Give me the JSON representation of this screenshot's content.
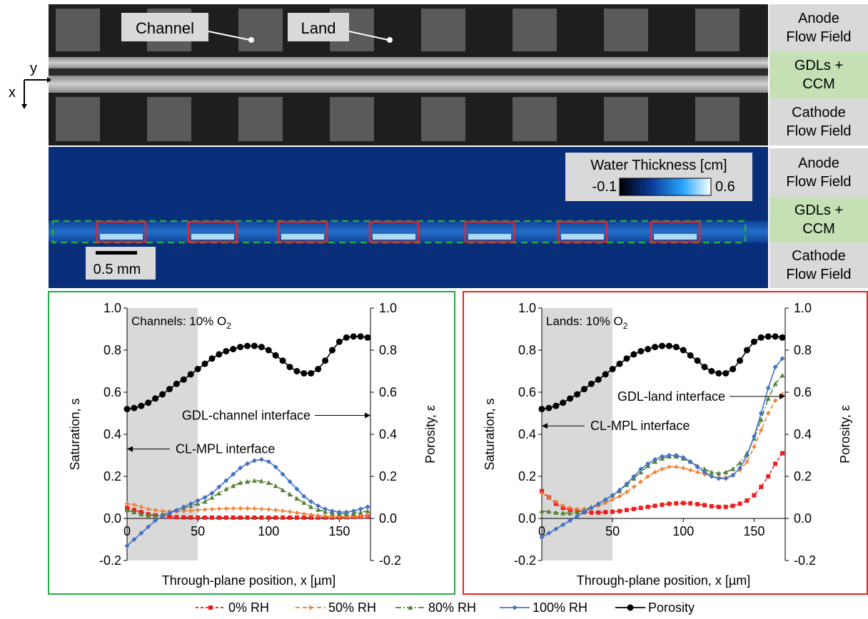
{
  "top_image": {
    "callouts": [
      {
        "label": "Channel"
      },
      {
        "label": "Land"
      }
    ],
    "axes": {
      "x": "x",
      "y": "y"
    },
    "side_labels": [
      {
        "text": "Anode\nFlow Field",
        "color": "#d9d9d9"
      },
      {
        "text": "GDLs +\nCCM",
        "color": "#c5e0b4"
      },
      {
        "text": "Cathode\nFlow Field",
        "color": "#d9d9d9"
      }
    ]
  },
  "water_image": {
    "colorbar_title": "Water Thickness [cm]",
    "colorbar_min": "-0.1",
    "colorbar_max": "0.6",
    "scale_bar": "0.5 mm",
    "side_labels": [
      {
        "text": "Anode\nFlow Field",
        "color": "#d9d9d9"
      },
      {
        "text": "GDLs +\nCCM",
        "color": "#c5e0b4"
      },
      {
        "text": "Cathode\nFlow Field",
        "color": "#d9d9d9"
      }
    ],
    "channel_box_color": "#22aa44",
    "land_box_color": "#ee2222"
  },
  "legend": {
    "entries": [
      {
        "label": "0% RH",
        "color": "#ee1c1c",
        "marker": "square",
        "dash": "4,3"
      },
      {
        "label": "50% RH",
        "color": "#ed7d31",
        "marker": "plus",
        "dash": "6,4"
      },
      {
        "label": "80% RH",
        "color": "#548235",
        "marker": "triangle",
        "dash": "8,3,2,3"
      },
      {
        "label": "100% RH",
        "color": "#4472c4",
        "marker": "diamond",
        "dash": ""
      },
      {
        "label": "Porosity",
        "color": "#000000",
        "marker": "circle",
        "dash": ""
      }
    ]
  },
  "chart_data": [
    {
      "type": "line",
      "panel": "channels",
      "frame_color": "#22aa44",
      "title": "Channels: 10% O",
      "title_sub": "2",
      "xlabel": "Through-plane position, x [µm]",
      "ylabel": "Saturation, s",
      "y2label": "Porosity, ε",
      "xlim": [
        0,
        172
      ],
      "ylim": [
        -0.2,
        1.0
      ],
      "y2lim": [
        -0.2,
        1.0
      ],
      "xticks": [
        "0",
        "50",
        "100",
        "150"
      ],
      "yticks": [
        "-0.2",
        "0.0",
        "0.2",
        "0.4",
        "0.6",
        "0.8",
        "1.0"
      ],
      "y2ticks": [
        "-0.2",
        "0.0",
        "0.2",
        "0.4",
        "0.6",
        "0.8",
        "1.0"
      ],
      "shade_xrange": [
        0,
        50
      ],
      "annotations": [
        {
          "text": "GDL-channel interface",
          "arrow": "right",
          "x": 172,
          "y": 0.49
        },
        {
          "text": "CL-MPL interface",
          "arrow": "left",
          "x": 0,
          "y": 0.33
        }
      ],
      "x": [
        0,
        5,
        10,
        15,
        20,
        25,
        30,
        35,
        40,
        45,
        50,
        55,
        60,
        65,
        70,
        75,
        80,
        85,
        90,
        95,
        100,
        105,
        110,
        115,
        120,
        125,
        130,
        135,
        140,
        145,
        150,
        155,
        160,
        165,
        170
      ],
      "series": [
        {
          "name": "0% RH",
          "values": [
            0.05,
            0.04,
            0.03,
            0.02,
            0.015,
            0.01,
            0.008,
            0.006,
            0.005,
            0.004,
            0.004,
            0.004,
            0.004,
            0.004,
            0.004,
            0.004,
            0.004,
            0.004,
            0.004,
            0.004,
            0.004,
            0.004,
            0.004,
            0.004,
            0.004,
            0.004,
            0.004,
            0.004,
            0.004,
            0.004,
            0.005,
            0.006,
            0.007,
            0.008,
            0.01
          ]
        },
        {
          "name": "50% RH",
          "values": [
            0.07,
            0.065,
            0.055,
            0.045,
            0.04,
            0.035,
            0.033,
            0.033,
            0.035,
            0.037,
            0.04,
            0.042,
            0.044,
            0.046,
            0.047,
            0.048,
            0.048,
            0.048,
            0.047,
            0.045,
            0.043,
            0.04,
            0.036,
            0.032,
            0.027,
            0.022,
            0.018,
            0.014,
            0.011,
            0.009,
            0.008,
            0.008,
            0.009,
            0.011,
            0.013
          ]
        },
        {
          "name": "80% RH",
          "values": [
            0.04,
            0.03,
            0.02,
            0.015,
            0.015,
            0.02,
            0.03,
            0.04,
            0.05,
            0.06,
            0.07,
            0.08,
            0.1,
            0.12,
            0.14,
            0.155,
            0.17,
            0.175,
            0.18,
            0.178,
            0.17,
            0.155,
            0.135,
            0.115,
            0.095,
            0.075,
            0.055,
            0.042,
            0.032,
            0.025,
            0.022,
            0.022,
            0.025,
            0.03,
            0.035
          ]
        },
        {
          "name": "100% RH",
          "values": [
            -0.13,
            -0.1,
            -0.07,
            -0.04,
            -0.01,
            0.01,
            0.025,
            0.04,
            0.055,
            0.07,
            0.085,
            0.1,
            0.12,
            0.15,
            0.18,
            0.21,
            0.24,
            0.26,
            0.275,
            0.28,
            0.27,
            0.245,
            0.21,
            0.175,
            0.14,
            0.105,
            0.08,
            0.06,
            0.045,
            0.035,
            0.03,
            0.03,
            0.035,
            0.045,
            0.055
          ]
        },
        {
          "name": "Porosity",
          "values": [
            0.52,
            0.525,
            0.535,
            0.55,
            0.57,
            0.59,
            0.615,
            0.64,
            0.66,
            0.685,
            0.71,
            0.735,
            0.76,
            0.78,
            0.795,
            0.805,
            0.815,
            0.82,
            0.82,
            0.815,
            0.8,
            0.775,
            0.75,
            0.72,
            0.7,
            0.69,
            0.69,
            0.71,
            0.75,
            0.8,
            0.84,
            0.86,
            0.865,
            0.865,
            0.86
          ]
        }
      ]
    },
    {
      "type": "line",
      "panel": "lands",
      "frame_color": "#ee2222",
      "title": "Lands: 10% O",
      "title_sub": "2",
      "xlabel": "Through-plane position, x [µm]",
      "ylabel": "Saturation, s",
      "y2label": "Porosity, ε",
      "xlim": [
        0,
        172
      ],
      "ylim": [
        -0.2,
        1.0
      ],
      "y2lim": [
        -0.2,
        1.0
      ],
      "xticks": [
        "0",
        "50",
        "100",
        "150"
      ],
      "yticks": [
        "-0.2",
        "0.0",
        "0.2",
        "0.4",
        "0.6",
        "0.8",
        "1.0"
      ],
      "y2ticks": [
        "-0.2",
        "0.0",
        "0.2",
        "0.4",
        "0.6",
        "0.8",
        "1.0"
      ],
      "shade_xrange": [
        0,
        50
      ],
      "annotations": [
        {
          "text": "GDL-land interface",
          "arrow": "right",
          "x": 172,
          "y": 0.58
        },
        {
          "text": "CL-MPL interface",
          "arrow": "left",
          "x": 0,
          "y": 0.44
        }
      ],
      "x": [
        0,
        5,
        10,
        15,
        20,
        25,
        30,
        35,
        40,
        45,
        50,
        55,
        60,
        65,
        70,
        75,
        80,
        85,
        90,
        95,
        100,
        105,
        110,
        115,
        120,
        125,
        130,
        135,
        140,
        145,
        150,
        155,
        160,
        165,
        170
      ],
      "series": [
        {
          "name": "0% RH",
          "values": [
            0.13,
            0.1,
            0.07,
            0.05,
            0.04,
            0.035,
            0.03,
            0.028,
            0.028,
            0.03,
            0.032,
            0.035,
            0.04,
            0.045,
            0.05,
            0.055,
            0.06,
            0.065,
            0.07,
            0.072,
            0.073,
            0.072,
            0.068,
            0.063,
            0.058,
            0.055,
            0.055,
            0.06,
            0.07,
            0.085,
            0.11,
            0.15,
            0.2,
            0.26,
            0.31
          ]
        },
        {
          "name": "50% RH",
          "values": [
            0.12,
            0.1,
            0.08,
            0.06,
            0.05,
            0.045,
            0.045,
            0.05,
            0.06,
            0.075,
            0.09,
            0.105,
            0.125,
            0.15,
            0.175,
            0.2,
            0.22,
            0.235,
            0.245,
            0.245,
            0.24,
            0.23,
            0.22,
            0.21,
            0.2,
            0.195,
            0.195,
            0.205,
            0.23,
            0.27,
            0.34,
            0.42,
            0.5,
            0.56,
            0.59
          ]
        },
        {
          "name": "80% RH",
          "values": [
            0.035,
            0.033,
            0.028,
            0.025,
            0.025,
            0.03,
            0.04,
            0.055,
            0.07,
            0.09,
            0.11,
            0.13,
            0.16,
            0.19,
            0.22,
            0.25,
            0.27,
            0.285,
            0.295,
            0.295,
            0.285,
            0.27,
            0.25,
            0.235,
            0.22,
            0.215,
            0.22,
            0.235,
            0.265,
            0.31,
            0.38,
            0.47,
            0.57,
            0.64,
            0.68
          ]
        },
        {
          "name": "100% RH",
          "values": [
            -0.09,
            -0.07,
            -0.05,
            -0.03,
            -0.01,
            0.01,
            0.03,
            0.05,
            0.07,
            0.09,
            0.11,
            0.135,
            0.165,
            0.2,
            0.235,
            0.26,
            0.28,
            0.295,
            0.3,
            0.3,
            0.29,
            0.27,
            0.245,
            0.22,
            0.2,
            0.19,
            0.19,
            0.205,
            0.24,
            0.3,
            0.39,
            0.5,
            0.62,
            0.72,
            0.76
          ]
        },
        {
          "name": "Porosity",
          "values": [
            0.52,
            0.525,
            0.535,
            0.55,
            0.57,
            0.59,
            0.615,
            0.64,
            0.66,
            0.685,
            0.71,
            0.735,
            0.76,
            0.78,
            0.795,
            0.805,
            0.815,
            0.82,
            0.82,
            0.815,
            0.8,
            0.775,
            0.75,
            0.72,
            0.7,
            0.69,
            0.69,
            0.71,
            0.75,
            0.8,
            0.84,
            0.86,
            0.865,
            0.865,
            0.86
          ]
        }
      ]
    }
  ]
}
